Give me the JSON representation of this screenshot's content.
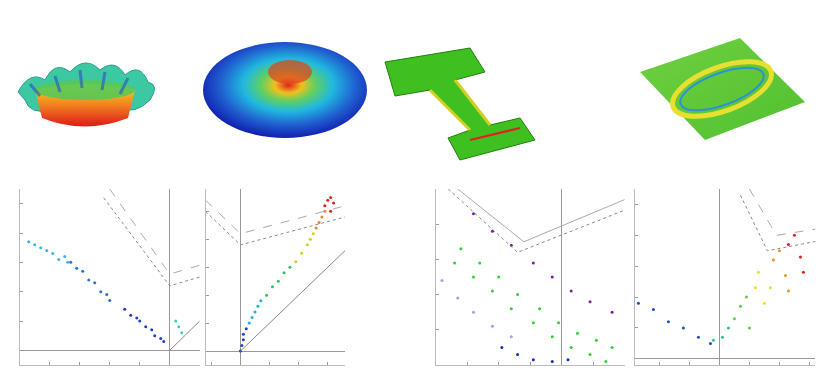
{
  "chart_data": [
    {
      "type": "scatter",
      "grid": false,
      "tick_labels": false,
      "xlim": [
        -0.5,
        0.1
      ],
      "ylim": [
        -0.05,
        0.55
      ],
      "xticks": [
        -0.4,
        -0.3,
        -0.2,
        -0.1,
        0
      ],
      "yticks": [
        0,
        0.1,
        0.2,
        0.3,
        0.4,
        0.5
      ],
      "series": [
        {
          "type": "scatter",
          "marker": "circle",
          "color": "#1f3fbf",
          "x": [
            -0.15,
            -0.13,
            -0.11,
            -0.1,
            -0.08,
            -0.06,
            -0.05,
            -0.03,
            -0.02
          ],
          "values": [
            0.14,
            0.12,
            0.11,
            0.1,
            0.08,
            0.07,
            0.05,
            0.04,
            0.03
          ]
        },
        {
          "type": "scatter",
          "marker": "circle",
          "color": "#2b6fd6",
          "x": [
            -0.33,
            -0.31,
            -0.29,
            -0.27,
            -0.25,
            -0.23,
            -0.21,
            -0.2
          ],
          "values": [
            0.3,
            0.28,
            0.27,
            0.24,
            0.23,
            0.2,
            0.19,
            0.17
          ]
        },
        {
          "type": "scatter",
          "marker": "circle",
          "color": "#3fb4e0",
          "x": [
            -0.47,
            -0.45,
            -0.43,
            -0.41,
            -0.39,
            -0.37,
            -0.35,
            -0.34
          ],
          "values": [
            0.37,
            0.36,
            0.35,
            0.34,
            0.33,
            0.31,
            0.32,
            0.3
          ]
        },
        {
          "type": "scatter",
          "marker": "circle",
          "color": "#3fd0b0",
          "x": [
            0.02,
            0.03,
            0.04
          ],
          "values": [
            0.1,
            0.08,
            0.06
          ]
        },
        {
          "type": "line",
          "line_style": "dotted",
          "color": "#888888",
          "x": [
            -0.22,
            0,
            0.1
          ],
          "values": [
            0.52,
            0.22,
            0.25
          ]
        },
        {
          "type": "line",
          "line_style": "dashed",
          "color": "#aaaaaa",
          "x": [
            -0.2,
            0,
            0.1
          ],
          "values": [
            0.55,
            0.26,
            0.29
          ]
        },
        {
          "type": "line",
          "line_style": "solid",
          "color": "#888888",
          "x": [
            0,
            0.1
          ],
          "values": [
            0,
            0.1
          ]
        }
      ]
    },
    {
      "type": "scatter",
      "grid": false,
      "tick_labels": false,
      "xlim": [
        -0.12,
        0.36
      ],
      "ylim": [
        -0.05,
        0.58
      ],
      "xticks": [
        -0.1,
        0,
        0.1,
        0.2,
        0.3
      ],
      "yticks": [
        0,
        0.1,
        0.2,
        0.3,
        0.4,
        0.5
      ],
      "series": [
        {
          "type": "scatter",
          "marker": "circle",
          "color": "#2040c0",
          "x": [
            0,
            0.005,
            0.01,
            0.01,
            0.02
          ],
          "values": [
            0,
            0.02,
            0.04,
            0.06,
            0.08
          ]
        },
        {
          "type": "scatter",
          "marker": "circle",
          "color": "#20b0d0",
          "x": [
            0.03,
            0.04,
            0.05,
            0.06,
            0.07
          ],
          "values": [
            0.1,
            0.12,
            0.14,
            0.16,
            0.18
          ]
        },
        {
          "type": "scatter",
          "marker": "circle",
          "color": "#30c060",
          "x": [
            0.09,
            0.11,
            0.13,
            0.15,
            0.17
          ],
          "values": [
            0.2,
            0.23,
            0.25,
            0.28,
            0.3
          ]
        },
        {
          "type": "scatter",
          "marker": "circle",
          "color": "#d0d020",
          "x": [
            0.19,
            0.21,
            0.23,
            0.24,
            0.25
          ],
          "values": [
            0.32,
            0.35,
            0.38,
            0.4,
            0.42
          ]
        },
        {
          "type": "scatter",
          "marker": "circle",
          "color": "#f08020",
          "x": [
            0.26,
            0.27,
            0.28,
            0.29
          ],
          "values": [
            0.44,
            0.46,
            0.48,
            0.5
          ]
        },
        {
          "type": "scatter",
          "marker": "circle",
          "color": "#e02020",
          "x": [
            0.29,
            0.3,
            0.31,
            0.32,
            0.31
          ],
          "values": [
            0.52,
            0.54,
            0.55,
            0.53,
            0.5
          ]
        },
        {
          "type": "line",
          "line_style": "dotted",
          "color": "#888888",
          "x": [
            -0.12,
            0,
            0.36
          ],
          "values": [
            0.5,
            0.38,
            0.48
          ]
        },
        {
          "type": "line",
          "line_style": "dashed",
          "color": "#aaaaaa",
          "x": [
            -0.12,
            0,
            0.36
          ],
          "values": [
            0.54,
            0.42,
            0.52
          ]
        },
        {
          "type": "line",
          "line_style": "solid",
          "color": "#888888",
          "x": [
            0,
            0.36
          ],
          "values": [
            0,
            0.36
          ]
        }
      ]
    },
    {
      "type": "scatter",
      "grid": false,
      "tick_labels": false,
      "xlim": [
        -0.4,
        0.2
      ],
      "ylim": [
        0,
        0.5
      ],
      "xticks": [
        -0.3,
        -0.2,
        -0.1,
        0,
        0.1
      ],
      "yticks": [
        0,
        0.1,
        0.2,
        0.3,
        0.4
      ],
      "series": [
        {
          "type": "scatter",
          "marker": "circle",
          "color": "#30d030",
          "x": [
            -0.34,
            -0.28,
            -0.22,
            -0.16,
            -0.09,
            -0.03,
            0.03,
            0.09,
            0.14,
            -0.32,
            -0.26,
            -0.2,
            -0.14,
            -0.07,
            -0.01,
            0.05,
            0.11,
            0.16
          ],
          "values": [
            0.29,
            0.25,
            0.21,
            0.16,
            0.12,
            0.08,
            0.05,
            0.03,
            0.01,
            0.33,
            0.29,
            0.25,
            0.2,
            0.16,
            0.12,
            0.09,
            0.07,
            0.05
          ]
        },
        {
          "type": "scatter",
          "marker": "circle",
          "color": "#7a1fa0",
          "x": [
            -0.28,
            -0.22,
            -0.16,
            -0.09,
            -0.03,
            0.03,
            0.09,
            0.16
          ],
          "values": [
            0.43,
            0.38,
            0.34,
            0.29,
            0.25,
            0.21,
            0.18,
            0.15
          ]
        },
        {
          "type": "scatter",
          "marker": "circle",
          "color": "#a0a0e8",
          "x": [
            -0.38,
            -0.33,
            -0.28,
            -0.22,
            -0.16
          ],
          "values": [
            0.24,
            0.19,
            0.15,
            0.11,
            0.08
          ]
        },
        {
          "type": "scatter",
          "marker": "circle",
          "color": "#1030c0",
          "x": [
            -0.19,
            -0.14,
            -0.09,
            -0.03,
            0.02
          ],
          "values": [
            0.05,
            0.03,
            0.015,
            0.01,
            0.015
          ]
        },
        {
          "type": "line",
          "line_style": "dotted",
          "color": "#888888",
          "x": [
            -0.36,
            -0.14,
            0.2
          ],
          "values": [
            0.5,
            0.32,
            0.44
          ]
        },
        {
          "type": "line",
          "line_style": "solid",
          "color": "#aaaaaa",
          "x": [
            -0.33,
            -0.12,
            0.2
          ],
          "values": [
            0.5,
            0.35,
            0.47
          ]
        }
      ]
    },
    {
      "type": "scatter",
      "grid": false,
      "tick_labels": false,
      "xlim": [
        -0.28,
        0.32
      ],
      "ylim": [
        -0.02,
        0.55
      ],
      "xticks": [
        -0.2,
        -0.1,
        0,
        0.1,
        0.2,
        0.3
      ],
      "yticks": [
        0,
        0.1,
        0.2,
        0.3,
        0.4,
        0.5
      ],
      "series": [
        {
          "type": "scatter",
          "marker": "circle",
          "color": "#2050c0",
          "x": [
            -0.27,
            -0.22,
            -0.17,
            -0.12,
            -0.07,
            -0.03
          ],
          "values": [
            0.18,
            0.16,
            0.12,
            0.1,
            0.07,
            0.05
          ]
        },
        {
          "type": "scatter",
          "marker": "circle",
          "color": "#30c0a0",
          "x": [
            -0.02,
            0.01,
            0.03
          ],
          "values": [
            0.06,
            0.07,
            0.1
          ]
        },
        {
          "type": "scatter",
          "marker": "circle",
          "color": "#60d040",
          "x": [
            0.05,
            0.07,
            0.1,
            0.09
          ],
          "values": [
            0.13,
            0.17,
            0.1,
            0.2
          ]
        },
        {
          "type": "scatter",
          "marker": "circle",
          "color": "#e8e020",
          "x": [
            0.12,
            0.15,
            0.13,
            0.17
          ],
          "values": [
            0.23,
            0.18,
            0.28,
            0.23
          ]
        },
        {
          "type": "scatter",
          "marker": "circle",
          "color": "#f09020",
          "x": [
            0.18,
            0.22,
            0.2,
            0.23
          ],
          "values": [
            0.32,
            0.27,
            0.35,
            0.22
          ]
        },
        {
          "type": "scatter",
          "marker": "circle",
          "color": "#e02020",
          "x": [
            0.23,
            0.27,
            0.28,
            0.25
          ],
          "values": [
            0.37,
            0.33,
            0.28,
            0.4
          ]
        },
        {
          "type": "line",
          "line_style": "dotted",
          "color": "#888888",
          "x": [
            0.07,
            0.16,
            0.32
          ],
          "values": [
            0.53,
            0.35,
            0.38
          ]
        },
        {
          "type": "line",
          "line_style": "dashed",
          "color": "#aaaaaa",
          "x": [
            0.1,
            0.19,
            0.32
          ],
          "values": [
            0.55,
            0.4,
            0.42
          ]
        }
      ]
    }
  ]
}
